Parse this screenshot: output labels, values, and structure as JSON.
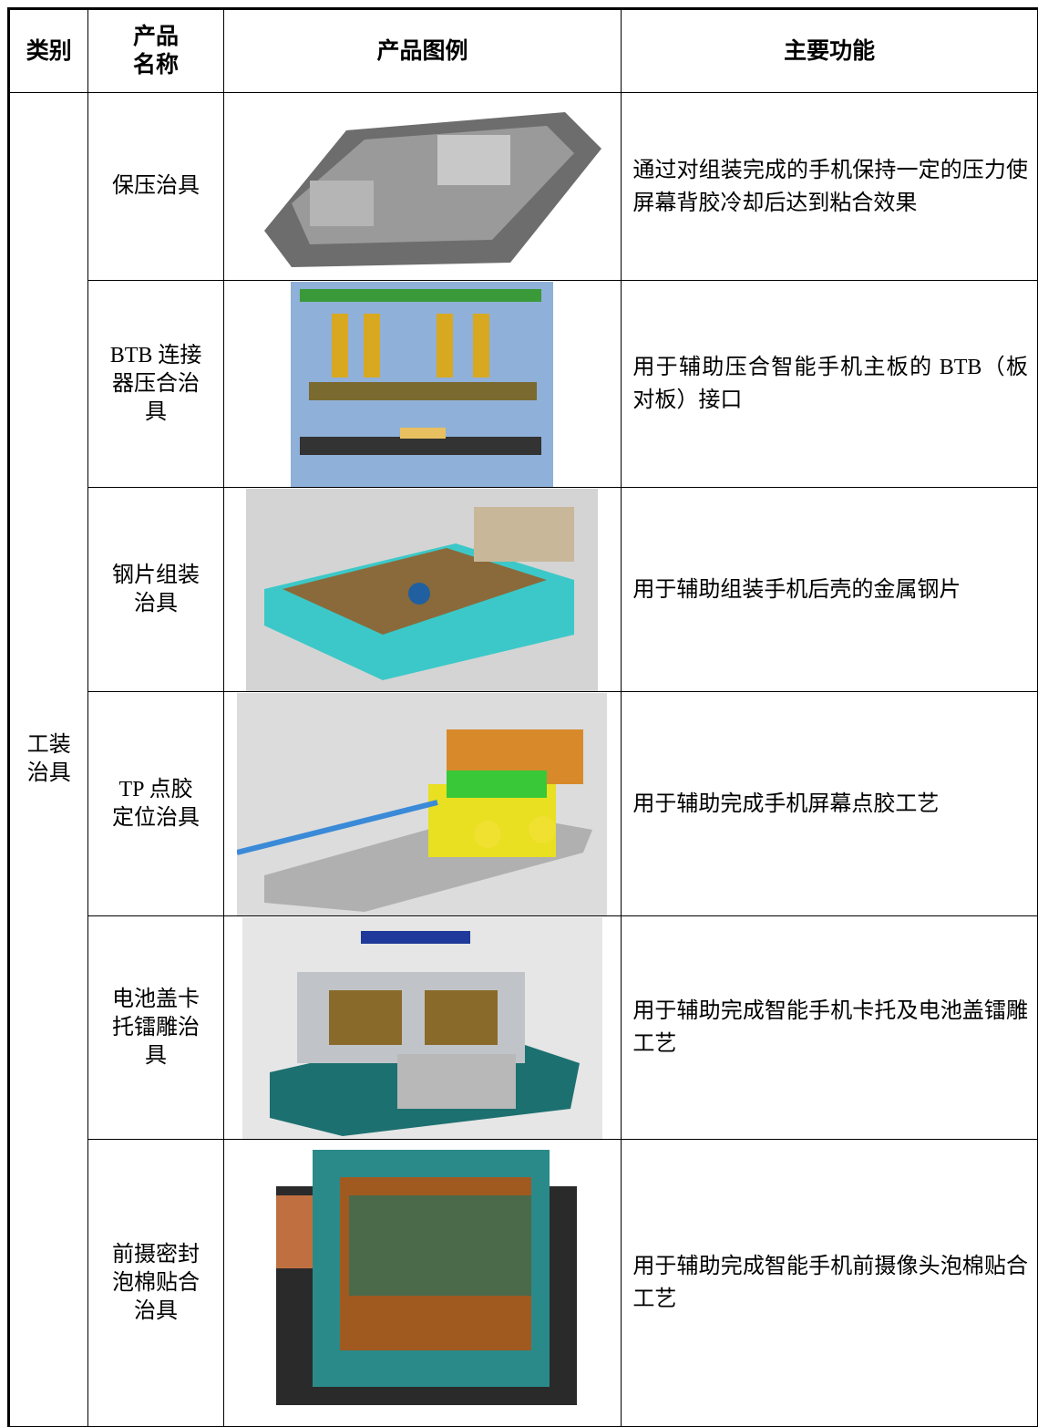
{
  "header": {
    "category": "类别",
    "name": [
      "产品",
      "名称"
    ],
    "image": "产品图例",
    "function": "主要功能"
  },
  "category": [
    "工装",
    "治具"
  ],
  "rows": [
    {
      "name": [
        "保压治具"
      ],
      "function": "通过对组装完成的手机保持一定的压力使屏幕背胶冷却后达到粘合效果"
    },
    {
      "name": [
        "BTB 连接",
        "器压合治",
        "具"
      ],
      "function": "用于辅助压合智能手机主板的 BTB（板对板）接口"
    },
    {
      "name": [
        "钢片组装",
        "治具"
      ],
      "function": "用于辅助组装手机后壳的金属钢片"
    },
    {
      "name": [
        "TP 点胶",
        "定位治具"
      ],
      "function": "用于辅助完成手机屏幕点胶工艺"
    },
    {
      "name": [
        "电池盖卡",
        "托镭雕治",
        "具"
      ],
      "function": "用于辅助完成智能手机卡托及电池盖镭雕工艺"
    },
    {
      "name": [
        "前摄密封",
        "泡棉贴合",
        "治具"
      ],
      "function": "用于辅助完成智能手机前摄像头泡棉贴合工艺"
    }
  ]
}
